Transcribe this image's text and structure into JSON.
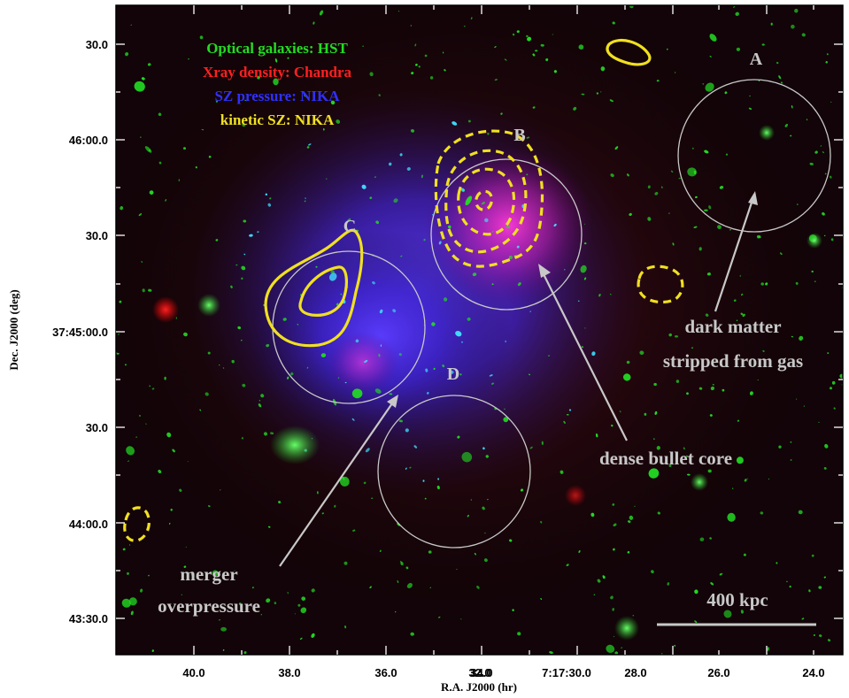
{
  "legend": [
    {
      "text": "Optical galaxies: HST",
      "color": "#22dd22"
    },
    {
      "text": "Xray density: Chandra",
      "color": "#ff2020"
    },
    {
      "text": "SZ pressure: NIKA",
      "color": "#3030ff"
    },
    {
      "text": "kinetic SZ: NIKA",
      "color": "#f0e020"
    }
  ],
  "regions": {
    "A": "A",
    "B": "B",
    "C": "C",
    "D": "D"
  },
  "annotations": {
    "dark_matter_1": "dark matter",
    "dark_matter_2": "stripped from gas",
    "bullet": "dense bullet core",
    "merger_1": "merger",
    "merger_2": "overpressure"
  },
  "scalebar": {
    "label": "400 kpc"
  },
  "axes": {
    "xlabel": "R.A. J2000 (hr)",
    "ylabel": "Dec. J2000 (deg)",
    "xticks": [
      "40.0",
      "38.0",
      "36.0",
      "34.0",
      "32.0",
      "7:17:30.0",
      "28.0",
      "26.0",
      "24.0"
    ],
    "yticks": [
      "30.0",
      "46:00.0",
      "30.0",
      "37:45:00.0",
      "30.0",
      "44:00.0",
      "43:30.0"
    ]
  },
  "colors": {
    "optical": "#22dd22",
    "xray": "#ff2020",
    "sz": "#3030ff",
    "ksz": "#f0e020",
    "annotation": "#c8c8c8"
  }
}
